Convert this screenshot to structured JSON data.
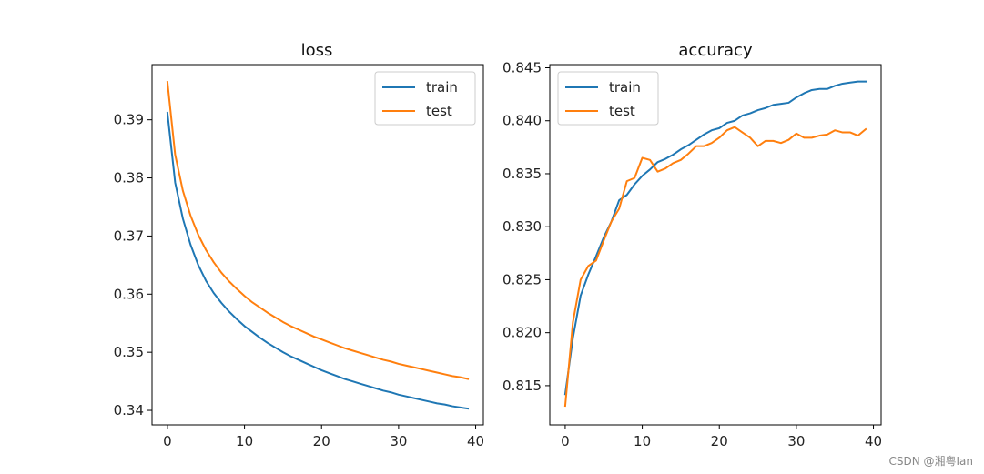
{
  "watermark": "CSDN @湘粤Ian",
  "colors": {
    "train": "#1f77b4",
    "test": "#ff7f0e"
  },
  "chart_data": [
    {
      "type": "line",
      "title": "loss",
      "xlabel": "",
      "ylabel": "",
      "xlim": [
        -2,
        41
      ],
      "ylim": [
        0.3375,
        0.3995
      ],
      "xticks": [
        0,
        10,
        20,
        30,
        40
      ],
      "yticks": [
        0.34,
        0.35,
        0.36,
        0.37,
        0.38,
        0.39
      ],
      "ytick_labels": [
        "0.34",
        "0.35",
        "0.36",
        "0.37",
        "0.38",
        "0.39"
      ],
      "legend_position": "upper right",
      "grid": false,
      "x": [
        0,
        1,
        2,
        3,
        4,
        5,
        6,
        7,
        8,
        9,
        10,
        11,
        12,
        13,
        14,
        15,
        16,
        17,
        18,
        19,
        20,
        21,
        22,
        23,
        24,
        25,
        26,
        27,
        28,
        29,
        30,
        31,
        32,
        33,
        34,
        35,
        36,
        37,
        38,
        39
      ],
      "series": [
        {
          "name": "train",
          "values": [
            0.3912,
            0.3792,
            0.373,
            0.3685,
            0.365,
            0.3623,
            0.3602,
            0.3585,
            0.357,
            0.3557,
            0.3545,
            0.3535,
            0.3525,
            0.3516,
            0.3508,
            0.35,
            0.3493,
            0.3487,
            0.3481,
            0.3475,
            0.3469,
            0.3464,
            0.3459,
            0.3454,
            0.345,
            0.3446,
            0.3442,
            0.3438,
            0.3434,
            0.3431,
            0.3427,
            0.3424,
            0.3421,
            0.3418,
            0.3415,
            0.3412,
            0.341,
            0.3407,
            0.3405,
            0.3403
          ]
        },
        {
          "name": "test",
          "values": [
            0.3965,
            0.384,
            0.3778,
            0.3735,
            0.3702,
            0.3676,
            0.3655,
            0.3637,
            0.3622,
            0.3609,
            0.3597,
            0.3586,
            0.3577,
            0.3568,
            0.356,
            0.3552,
            0.3545,
            0.3539,
            0.3533,
            0.3527,
            0.3522,
            0.3517,
            0.3512,
            0.3507,
            0.3503,
            0.3499,
            0.3495,
            0.3491,
            0.3487,
            0.3484,
            0.348,
            0.3477,
            0.3474,
            0.3471,
            0.3468,
            0.3465,
            0.3462,
            0.3459,
            0.3457,
            0.3454
          ]
        }
      ]
    },
    {
      "type": "line",
      "title": "accuracy",
      "xlabel": "",
      "ylabel": "",
      "xlim": [
        -2,
        41
      ],
      "ylim": [
        0.8113,
        0.8453
      ],
      "xticks": [
        0,
        10,
        20,
        30,
        40
      ],
      "yticks": [
        0.815,
        0.82,
        0.825,
        0.83,
        0.835,
        0.84,
        0.845
      ],
      "ytick_labels": [
        "0.815",
        "0.820",
        "0.825",
        "0.830",
        "0.835",
        "0.840",
        "0.845"
      ],
      "legend_position": "upper left",
      "grid": false,
      "x": [
        0,
        1,
        2,
        3,
        4,
        5,
        6,
        7,
        8,
        9,
        10,
        11,
        12,
        13,
        14,
        15,
        16,
        17,
        18,
        19,
        20,
        21,
        22,
        23,
        24,
        25,
        26,
        27,
        28,
        29,
        30,
        31,
        32,
        33,
        34,
        35,
        36,
        37,
        38,
        39
      ],
      "series": [
        {
          "name": "train",
          "values": [
            0.8142,
            0.8195,
            0.8235,
            0.8255,
            0.8272,
            0.829,
            0.8305,
            0.8325,
            0.833,
            0.834,
            0.8348,
            0.8354,
            0.8361,
            0.8364,
            0.8368,
            0.8373,
            0.8377,
            0.8382,
            0.8387,
            0.8391,
            0.8393,
            0.8398,
            0.84,
            0.8405,
            0.8407,
            0.841,
            0.8412,
            0.8415,
            0.8416,
            0.8417,
            0.8422,
            0.8426,
            0.8429,
            0.843,
            0.843,
            0.8433,
            0.8435,
            0.8436,
            0.8437,
            0.8437
          ]
        },
        {
          "name": "test",
          "values": [
            0.8131,
            0.821,
            0.825,
            0.8263,
            0.8268,
            0.8287,
            0.8305,
            0.8317,
            0.8343,
            0.8346,
            0.8365,
            0.8363,
            0.8352,
            0.8355,
            0.836,
            0.8363,
            0.8369,
            0.8376,
            0.8376,
            0.8379,
            0.8384,
            0.8391,
            0.8394,
            0.8389,
            0.8384,
            0.8376,
            0.8381,
            0.8381,
            0.8379,
            0.8382,
            0.8388,
            0.8384,
            0.8384,
            0.8386,
            0.8387,
            0.8391,
            0.8389,
            0.8389,
            0.8386,
            0.8392
          ]
        }
      ]
    }
  ]
}
